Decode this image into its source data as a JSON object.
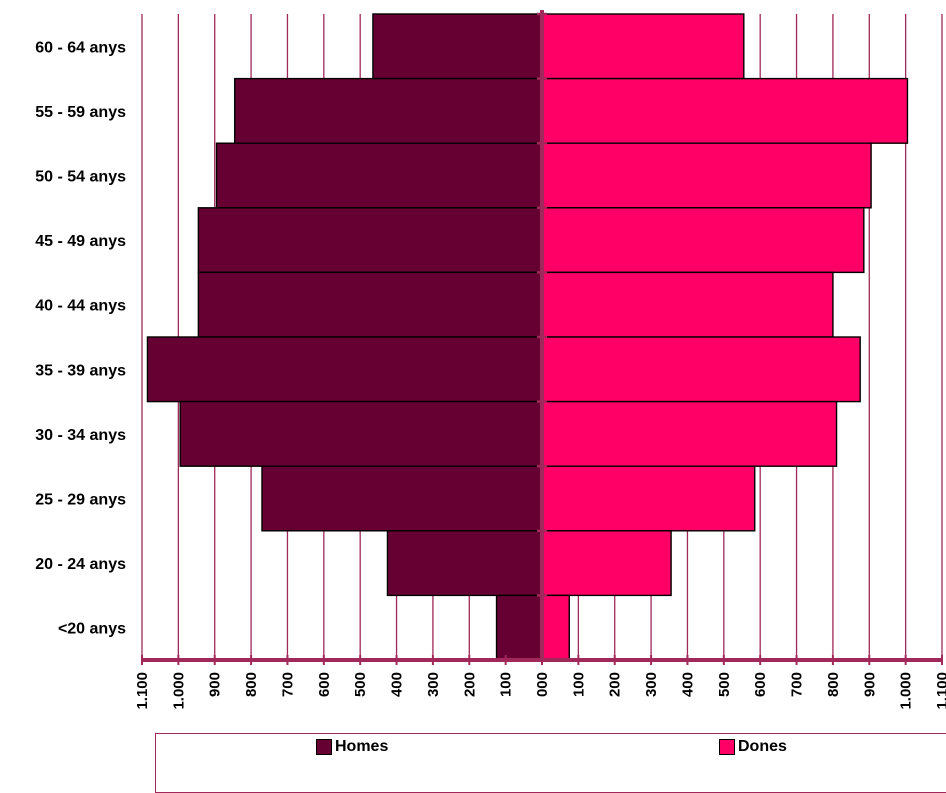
{
  "chart_data": {
    "type": "bar",
    "orientation": "horizontal",
    "layout": "population-pyramid",
    "categories": [
      "60 - 64 anys",
      "55 - 59 anys",
      "50 - 54 anys",
      "45 - 49 anys",
      "40 - 44 anys",
      "35 - 39 anys",
      "30 - 34 anys",
      "25 - 29 anys",
      "20 - 24 anys",
      "<20 anys"
    ],
    "series": [
      {
        "name": "Homes",
        "side": "left",
        "color": "#660033",
        "values": [
          465,
          845,
          895,
          945,
          945,
          1085,
          995,
          770,
          425,
          125
        ]
      },
      {
        "name": "Dones",
        "side": "right",
        "color": "#ff0066",
        "values": [
          555,
          1005,
          905,
          885,
          800,
          875,
          810,
          585,
          355,
          75
        ]
      }
    ],
    "x_ticks": [
      "1.100",
      "1.000",
      "900",
      "800",
      "700",
      "600",
      "500",
      "400",
      "300",
      "200",
      "100",
      "000",
      "100",
      "200",
      "300",
      "400",
      "500",
      "600",
      "700",
      "800",
      "900",
      "1.000",
      "1.100"
    ],
    "xlim": [
      -1100,
      1100
    ],
    "grid": true,
    "grid_color": "#a0285a",
    "legend_position": "bottom"
  }
}
